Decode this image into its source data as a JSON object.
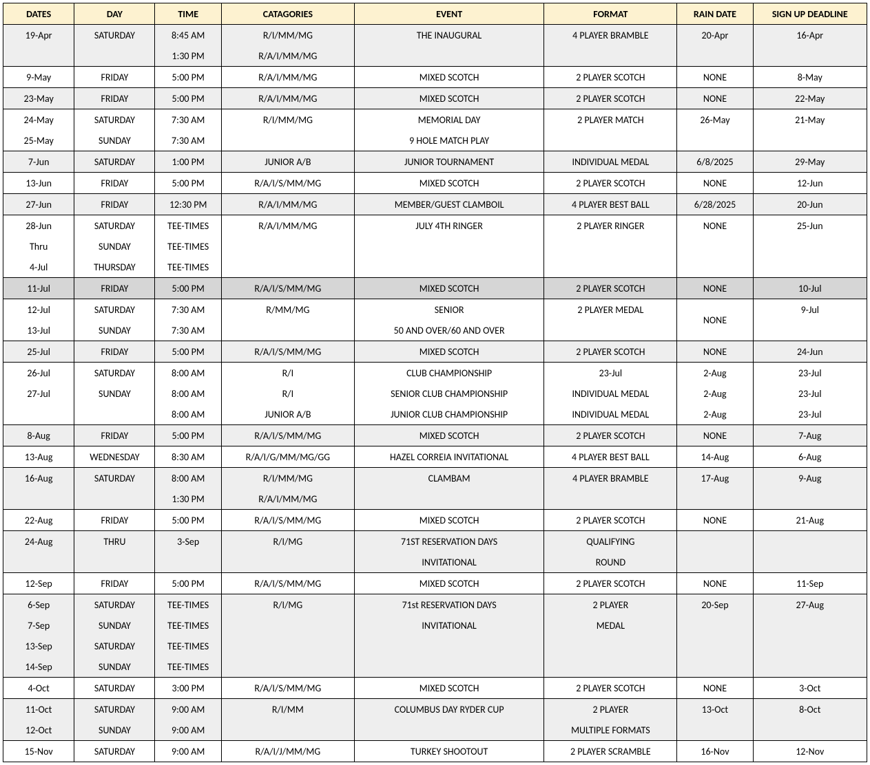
{
  "headers": {
    "dates": "DATES",
    "day": "DAY",
    "time": "TIME",
    "categories": "CATAGORIES",
    "event": "EVENT",
    "format": "FORMAT",
    "rain": "RAIN DATE",
    "deadline": "SIGN UP DEADLINE"
  },
  "colors": {
    "header_bg": "#fdf2d0",
    "shaded_bg": "#eeeeee",
    "shaded_dark_bg": "#d6d6d6",
    "border": "#000000",
    "white": "#ffffff"
  },
  "rows": [
    {
      "shade": "shaded",
      "merge": "top",
      "dates": "19-Apr",
      "day": "SATURDAY",
      "time": "8:45 AM",
      "cat": "R/I/MM/MG",
      "event": "THE INAUGURAL",
      "format": "4 PLAYER BRAMBLE",
      "rain": "20-Apr",
      "deadline": "16-Apr"
    },
    {
      "shade": "shaded",
      "merge": "bot",
      "dates": "",
      "day": "",
      "time": "1:30 PM",
      "cat": "R/A/I/MM/MG",
      "event": "",
      "format": "",
      "rain": "",
      "deadline": ""
    },
    {
      "shade": "",
      "dates": "9-May",
      "day": "FRIDAY",
      "time": "5:00 PM",
      "cat": "R/A/I/MM/MG",
      "event": "MIXED SCOTCH",
      "format": "2 PLAYER SCOTCH",
      "rain": "NONE",
      "deadline": "8-May"
    },
    {
      "shade": "shaded",
      "dates": "23-May",
      "day": "FRIDAY",
      "time": "5:00 PM",
      "cat": "R/A/I/MM/MG",
      "event": "MIXED SCOTCH",
      "format": "2 PLAYER SCOTCH",
      "rain": "NONE",
      "deadline": "22-May"
    },
    {
      "shade": "",
      "merge": "top",
      "dates": "24-May",
      "day": "SATURDAY",
      "time": "7:30 AM",
      "cat": "R/I/MM/MG",
      "event": "MEMORIAL DAY",
      "format": "2 PLAYER MATCH",
      "rain": "26-May",
      "deadline": "21-May"
    },
    {
      "shade": "",
      "merge": "bot",
      "dates": "25-May",
      "day": "SUNDAY",
      "time": "7:30 AM",
      "cat": "",
      "event": "9 HOLE MATCH PLAY",
      "format": "",
      "rain": "",
      "deadline": ""
    },
    {
      "shade": "shaded",
      "dates": "7-Jun",
      "day": "SATURDAY",
      "time": "1:00 PM",
      "cat": "JUNIOR A/B",
      "event": "JUNIOR TOURNAMENT",
      "format": "INDIVIDUAL MEDAL",
      "rain": "6/8/2025",
      "deadline": "29-May"
    },
    {
      "shade": "",
      "dates": "13-Jun",
      "day": "FRIDAY",
      "time": "5:00 PM",
      "cat": "R/A/I/S/MM/MG",
      "event": "MIXED SCOTCH",
      "format": "2 PLAYER SCOTCH",
      "rain": "NONE",
      "deadline": "12-Jun"
    },
    {
      "shade": "shaded",
      "dates": "27-Jun",
      "day": "FRIDAY",
      "time": "12:30 PM",
      "cat": "R/A/I/MM/MG",
      "event": "MEMBER/GUEST CLAMBOIL",
      "format": "4 PLAYER BEST BALL",
      "rain": "6/28/2025",
      "deadline": "20-Jun"
    },
    {
      "shade": "",
      "merge": "top",
      "dates": "28-Jun",
      "day": "SATURDAY",
      "time": "TEE-TIMES",
      "cat": "R/A/I/MM/MG",
      "event": "JULY 4TH RINGER",
      "format": "2 PLAYER RINGER",
      "rain": "NONE",
      "deadline": "25-Jun"
    },
    {
      "shade": "",
      "merge": "mid",
      "dates": "Thru",
      "day": "SUNDAY",
      "time": "TEE-TIMES",
      "cat": "",
      "event": "",
      "format": "",
      "rain": "",
      "deadline": ""
    },
    {
      "shade": "",
      "merge": "bot",
      "dates": "4-Jul",
      "day": "THURSDAY",
      "time": "TEE-TIMES",
      "cat": "",
      "event": "",
      "format": "",
      "rain": "",
      "deadline": ""
    },
    {
      "shade": "shaded-dark",
      "dates": "11-Jul",
      "day": "FRIDAY",
      "time": "5:00 PM",
      "cat": "R/A/I/S/MM/MG",
      "event": "MIXED SCOTCH",
      "format": "2 PLAYER SCOTCH",
      "rain": "NONE",
      "deadline": "10-Jul"
    },
    {
      "shade": "",
      "merge": "top",
      "rainRowspan": 2,
      "dates": "12-Jul",
      "day": "SATURDAY",
      "time": "7:30 AM",
      "cat": "R/MM/MG",
      "event": "SENIOR",
      "format": "2 PLAYER MEDAL",
      "rain": "NONE",
      "deadline": "9-Jul"
    },
    {
      "shade": "",
      "merge": "bot",
      "rainSkip": true,
      "dates": "13-Jul",
      "day": "SUNDAY",
      "time": "7:30 AM",
      "cat": "",
      "event": "50 AND OVER/60 AND OVER",
      "format": "",
      "rain": "",
      "deadline": ""
    },
    {
      "shade": "shaded",
      "dates": "25-Jul",
      "day": "FRIDAY",
      "time": "5:00 PM",
      "cat": "R/A/I/S/MM/MG",
      "event": "MIXED SCOTCH",
      "format": "2 PLAYER SCOTCH",
      "rain": "NONE",
      "deadline": "24-Jun"
    },
    {
      "shade": "",
      "merge": "top",
      "dates": "26-Jul",
      "day": "SATURDAY",
      "time": "8:00 AM",
      "cat": "R/I",
      "event": "CLUB CHAMPIONSHIP",
      "format": "23-Jul",
      "rain": "2-Aug",
      "deadline": "23-Jul"
    },
    {
      "shade": "",
      "merge": "mid",
      "dates": "27-Jul",
      "day": "SUNDAY",
      "time": "8:00 AM",
      "cat": "R/I",
      "event": "SENIOR CLUB CHAMPIONSHIP",
      "format": "INDIVIDUAL MEDAL",
      "rain": "2-Aug",
      "deadline": "23-Jul"
    },
    {
      "shade": "",
      "merge": "bot",
      "dates": "",
      "day": "",
      "time": "8:00 AM",
      "cat": "JUNIOR A/B",
      "event": "JUNIOR CLUB CHAMPIONSHIP",
      "format": "INDIVIDUAL MEDAL",
      "rain": "2-Aug",
      "deadline": "23-Jul"
    },
    {
      "shade": "shaded",
      "dates": "8-Aug",
      "day": "FRIDAY",
      "time": "5:00 PM",
      "cat": "R/A/I/S/MM/MG",
      "event": "MIXED SCOTCH",
      "format": "2 PLAYER SCOTCH",
      "rain": "NONE",
      "deadline": "7-Aug"
    },
    {
      "shade": "",
      "dates": "13-Aug",
      "day": "WEDNESDAY",
      "time": "8:30 AM",
      "cat": "R/A/I/G/MM/MG/GG",
      "event": "HAZEL CORREIA INVITATIONAL",
      "format": "4 PLAYER BEST BALL",
      "rain": "14-Aug",
      "deadline": "6-Aug"
    },
    {
      "shade": "shaded",
      "merge": "top",
      "dates": "16-Aug",
      "day": "SATURDAY",
      "time": "8:00 AM",
      "cat": "R/I/MM/MG",
      "event": "CLAMBAM",
      "format": "4 PLAYER BRAMBLE",
      "rain": "17-Aug",
      "deadline": "9-Aug"
    },
    {
      "shade": "shaded",
      "merge": "bot",
      "dates": "",
      "day": "",
      "time": "1:30 PM",
      "cat": "R/A/I/MM/MG",
      "event": "",
      "format": "",
      "rain": "",
      "deadline": ""
    },
    {
      "shade": "",
      "dates": "22-Aug",
      "day": "FRIDAY",
      "time": "5:00 PM",
      "cat": "R/A/I/S/MM/MG",
      "event": "MIXED SCOTCH",
      "format": "2 PLAYER SCOTCH",
      "rain": "NONE",
      "deadline": "21-Aug"
    },
    {
      "shade": "shaded",
      "merge": "top",
      "dates": "24-Aug",
      "day": "THRU",
      "time": "3-Sep",
      "cat": "R/I/MG",
      "event": "71ST RESERVATION DAYS",
      "format": "QUALIFYING",
      "rain": "",
      "deadline": ""
    },
    {
      "shade": "shaded",
      "merge": "bot",
      "dates": "",
      "day": "",
      "time": "",
      "cat": "",
      "event": "INVITATIONAL",
      "format": "ROUND",
      "rain": "",
      "deadline": ""
    },
    {
      "shade": "",
      "dates": "12-Sep",
      "day": "FRIDAY",
      "time": "5:00 PM",
      "cat": "R/A/I/S/MM/MG",
      "event": "MIXED SCOTCH",
      "format": "2 PLAYER SCOTCH",
      "rain": "NONE",
      "deadline": "11-Sep"
    },
    {
      "shade": "shaded",
      "merge": "top",
      "dates": "6-Sep",
      "day": "SATURDAY",
      "time": "TEE-TIMES",
      "cat": "R/I/MG",
      "event": "71st RESERVATION DAYS",
      "format": "2 PLAYER",
      "rain": "20-Sep",
      "deadline": "27-Aug"
    },
    {
      "shade": "shaded",
      "merge": "mid",
      "dates": "7-Sep",
      "day": "SUNDAY",
      "time": "TEE-TIMES",
      "cat": "",
      "event": "INVITATIONAL",
      "format": "MEDAL",
      "rain": "",
      "deadline": ""
    },
    {
      "shade": "shaded",
      "merge": "mid",
      "dates": "13-Sep",
      "day": "SATURDAY",
      "time": "TEE-TIMES",
      "cat": "",
      "event": "",
      "format": "",
      "rain": "",
      "deadline": ""
    },
    {
      "shade": "shaded",
      "merge": "bot",
      "dates": "14-Sep",
      "day": "SUNDAY",
      "time": "TEE-TIMES",
      "cat": "",
      "event": "",
      "format": "",
      "rain": "",
      "deadline": ""
    },
    {
      "shade": "",
      "dates": "4-Oct",
      "day": "SATURDAY",
      "time": "3:00 PM",
      "cat": "R/A/I/S/MM/MG",
      "event": "MIXED SCOTCH",
      "format": "2 PLAYER SCOTCH",
      "rain": "NONE",
      "deadline": "3-Oct"
    },
    {
      "shade": "shaded",
      "merge": "top",
      "dates": "11-Oct",
      "day": "SATURDAY",
      "time": "9:00 AM",
      "cat": "R/I/MM",
      "event": "COLUMBUS DAY RYDER CUP",
      "format": "2 PLAYER",
      "rain": "13-Oct",
      "deadline": "8-Oct"
    },
    {
      "shade": "shaded",
      "merge": "bot",
      "dates": "12-Oct",
      "day": "SUNDAY",
      "time": "9:00 AM",
      "cat": "",
      "event": "",
      "format": "MULTIPLE FORMATS",
      "rain": "",
      "deadline": ""
    },
    {
      "shade": "",
      "dates": "15-Nov",
      "day": "SATURDAY",
      "time": "9:00 AM",
      "cat": "R/A/I/J/MM/MG",
      "event": "TURKEY SHOOTOUT",
      "format": "2 PLAYER SCRAMBLE",
      "rain": "16-Nov",
      "deadline": "12-Nov"
    }
  ]
}
